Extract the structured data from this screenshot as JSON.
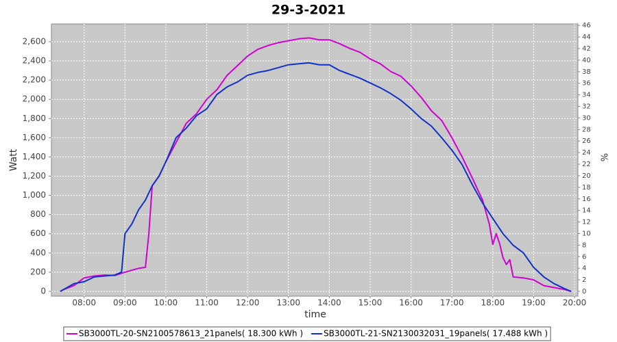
{
  "chart_data": {
    "type": "line",
    "title": "29-3-2021",
    "xlabel": "time",
    "ylabel": "Watt",
    "y2label": "%",
    "grid": true,
    "legend": "bottom",
    "plot_background": "#c8c8c8",
    "xlim": [
      "07:12",
      "20:05"
    ],
    "xticks": [
      "08:00",
      "09:00",
      "10:00",
      "11:00",
      "12:00",
      "13:00",
      "14:00",
      "15:00",
      "16:00",
      "17:00",
      "18:00",
      "19:00",
      "20:00"
    ],
    "ylim": [
      -50,
      2785
    ],
    "yticks": [
      0,
      200,
      400,
      600,
      800,
      {
        "value": 1000,
        "label": "1,000"
      },
      {
        "value": 1200,
        "label": "1,200"
      },
      {
        "value": 1400,
        "label": "1,400"
      },
      {
        "value": 1600,
        "label": "1,600"
      },
      {
        "value": 1800,
        "label": "1,800"
      },
      {
        "value": 2000,
        "label": "2,000"
      },
      {
        "value": 2200,
        "label": "2,200"
      },
      {
        "value": 2400,
        "label": "2,400"
      },
      {
        "value": 2600,
        "label": "2,600"
      }
    ],
    "y2lim": [
      -0.83,
      46.26
    ],
    "y2ticks": [
      0,
      2,
      4,
      6,
      8,
      10,
      12,
      14,
      16,
      18,
      20,
      22,
      24,
      26,
      28,
      30,
      32,
      34,
      36,
      38,
      40,
      42,
      44,
      46
    ],
    "series": [
      {
        "name": "SB3000TL-20-SN2100578613_21panels( 18.300 kWh )",
        "color": "#d000d0",
        "x": [
          "07:25",
          "07:30",
          "07:45",
          "08:00",
          "08:15",
          "08:30",
          "08:45",
          "09:00",
          "09:15",
          "09:20",
          "09:30",
          "09:35",
          "09:40",
          "09:50",
          "10:00",
          "10:15",
          "10:30",
          "10:45",
          "11:00",
          "11:15",
          "11:30",
          "11:45",
          "12:00",
          "12:15",
          "12:30",
          "12:45",
          "13:00",
          "13:15",
          "13:30",
          "13:45",
          "14:00",
          "14:15",
          "14:30",
          "14:45",
          "15:00",
          "15:15",
          "15:30",
          "15:45",
          "16:00",
          "16:15",
          "16:30",
          "16:45",
          "17:00",
          "17:15",
          "17:30",
          "17:45",
          "17:55",
          "18:00",
          "18:05",
          "18:10",
          "18:15",
          "18:20",
          "18:25",
          "18:30",
          "18:45",
          "19:00",
          "19:15",
          "19:30",
          "19:45",
          "19:55"
        ],
        "values": [
          0,
          20,
          60,
          140,
          160,
          170,
          165,
          200,
          230,
          240,
          250,
          600,
          1100,
          1200,
          1350,
          1550,
          1750,
          1850,
          2000,
          2100,
          2250,
          2350,
          2450,
          2520,
          2560,
          2590,
          2610,
          2630,
          2640,
          2620,
          2620,
          2580,
          2530,
          2490,
          2420,
          2370,
          2290,
          2240,
          2140,
          2020,
          1880,
          1780,
          1600,
          1400,
          1180,
          950,
          700,
          490,
          600,
          500,
          350,
          280,
          330,
          150,
          140,
          120,
          60,
          40,
          20,
          0
        ]
      },
      {
        "name": "SB3000TL-21-SN2130032031_19panels( 17.488 kWh )",
        "color": "#1030c8",
        "x": [
          "07:25",
          "07:30",
          "07:45",
          "08:00",
          "08:15",
          "08:30",
          "08:45",
          "08:55",
          "09:00",
          "09:10",
          "09:20",
          "09:30",
          "09:40",
          "09:50",
          "10:00",
          "10:15",
          "10:30",
          "10:45",
          "11:00",
          "11:15",
          "11:30",
          "11:45",
          "12:00",
          "12:15",
          "12:30",
          "12:45",
          "13:00",
          "13:15",
          "13:30",
          "13:45",
          "14:00",
          "14:15",
          "14:30",
          "14:45",
          "15:00",
          "15:15",
          "15:30",
          "15:45",
          "16:00",
          "16:15",
          "16:30",
          "16:45",
          "17:00",
          "17:15",
          "17:30",
          "17:45",
          "18:00",
          "18:15",
          "18:30",
          "18:45",
          "19:00",
          "19:15",
          "19:30",
          "19:45",
          "19:55"
        ],
        "values": [
          0,
          20,
          80,
          100,
          150,
          160,
          170,
          200,
          600,
          700,
          850,
          950,
          1100,
          1200,
          1350,
          1600,
          1700,
          1830,
          1900,
          2050,
          2130,
          2180,
          2250,
          2280,
          2300,
          2330,
          2360,
          2370,
          2380,
          2360,
          2360,
          2300,
          2260,
          2220,
          2170,
          2120,
          2060,
          1990,
          1900,
          1800,
          1720,
          1600,
          1470,
          1320,
          1110,
          920,
          760,
          600,
          480,
          400,
          250,
          150,
          80,
          30,
          0
        ]
      }
    ]
  }
}
